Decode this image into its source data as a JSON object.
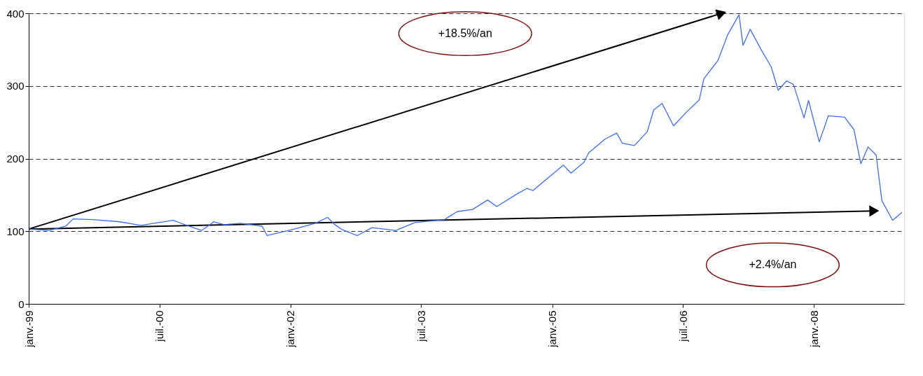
{
  "chart_data": {
    "type": "line",
    "xlim": [
      "1999-01-01",
      "2009-01-12"
    ],
    "xticks": [
      {
        "value": "1999-01-01",
        "label": "janv.-99"
      },
      {
        "value": "2000-07-01",
        "label": "juil.-00"
      },
      {
        "value": "2002-01-01",
        "label": "janv.-02"
      },
      {
        "value": "2003-07-01",
        "label": "juil.-03"
      },
      {
        "value": "2005-01-01",
        "label": "janv.-05"
      },
      {
        "value": "2006-07-01",
        "label": "juil.-06"
      },
      {
        "value": "2008-01-01",
        "label": "janv.-08"
      }
    ],
    "ylim": [
      0,
      400
    ],
    "yticks": [
      0,
      100,
      200,
      300,
      400
    ],
    "grid": "y",
    "line_style": "solid",
    "series": [
      {
        "color": "#3c6ef0",
        "x": [
          "1999-01-02",
          "1999-03-28",
          "1999-06-05",
          "1999-07-06",
          "1999-09-25",
          "2000-01-17",
          "2000-04-14",
          "2000-08-28",
          "2000-10-24",
          "2000-12-25",
          "2001-02-14",
          "2001-03-29",
          "2001-06-05",
          "2001-09-04",
          "2001-09-25",
          "2002-01-17",
          "2002-04-15",
          "2002-06-05",
          "2002-07-02",
          "2002-08-06",
          "2002-10-07",
          "2002-12-08",
          "2003-03-18",
          "2003-06-05",
          "2003-10-07",
          "2003-11-29",
          "2004-02-02",
          "2004-04-05",
          "2004-05-13",
          "2004-08-04",
          "2004-09-17",
          "2004-10-12",
          "2004-12-05",
          "2005-02-16",
          "2005-03-20",
          "2005-05-13",
          "2005-06-02",
          "2005-08-10",
          "2005-09-27",
          "2005-10-21",
          "2005-12-10",
          "2006-02-02",
          "2006-03-01",
          "2006-04-05",
          "2006-04-19",
          "2006-05-23",
          "2006-07-16",
          "2006-09-08",
          "2006-09-27",
          "2006-11-25",
          "2007-01-04",
          "2007-02-21",
          "2007-03-10",
          "2007-04-09",
          "2007-05-23",
          "2007-07-06",
          "2007-08-04",
          "2007-09-08",
          "2007-10-07",
          "2007-11-20",
          "2007-12-09",
          "2008-01-23",
          "2008-03-01",
          "2008-05-08",
          "2008-06-16",
          "2008-07-15",
          "2008-08-14",
          "2008-09-17",
          "2008-10-11",
          "2008-11-25",
          "2009-01-03"
        ],
        "values": [
          103,
          101,
          107,
          117,
          116,
          113,
          108,
          115,
          108,
          101,
          113,
          109,
          111,
          107,
          94,
          103,
          111,
          119,
          110,
          102,
          94,
          105,
          101,
          112,
          116,
          127,
          130,
          143,
          134,
          151,
          159,
          156,
          171,
          191,
          180,
          195,
          208,
          227,
          235,
          221,
          218,
          237,
          267,
          276,
          267,
          245,
          264,
          281,
          310,
          335,
          370,
          398,
          356,
          378,
          351,
          326,
          294,
          307,
          302,
          256,
          280,
          223,
          259,
          257,
          240,
          193,
          216,
          205,
          142,
          115,
          126
        ]
      },
      {
        "color": "#000000",
        "x": [
          "1999-01-01",
          "2006-12-10"
        ],
        "values": [
          103,
          400
        ]
      },
      {
        "color": "#000000",
        "x": [
          "1999-01-01",
          "2008-09-09"
        ],
        "values": [
          103,
          128
        ]
      }
    ],
    "annotations": [
      "+18.5%/an",
      "+2.4%/an"
    ]
  }
}
